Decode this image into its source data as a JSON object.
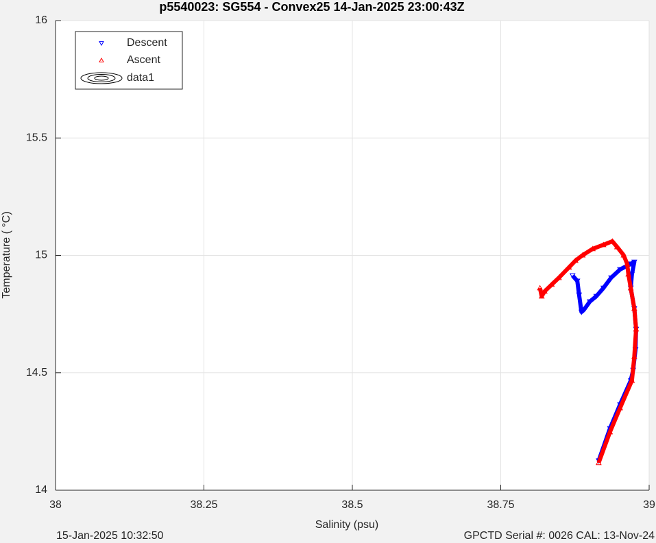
{
  "chart_data": {
    "type": "scatter",
    "title": "p5540023: SG554 - Convex25 14-Jan-2025 23:00:43Z",
    "x_label": "Salinity (psu)",
    "y_label": "Temperature (   °C)",
    "footer_left": "15-Jan-2025 10:32:50",
    "footer_right": "GPCTD Serial #: 0026 CAL: 13-Nov-24",
    "xlim": [
      38,
      39
    ],
    "xticks": [
      38,
      38.25,
      38.5,
      38.75,
      39
    ],
    "ylim": [
      14,
      16
    ],
    "yticks": [
      14,
      14.5,
      15,
      15.5,
      16
    ],
    "grid": true,
    "legend_position": "upper left",
    "legend_extra": "data1",
    "series": [
      {
        "name": "Descent",
        "color": "#0000ff",
        "marker": "triangle-down",
        "x": [
          38.871,
          38.879,
          38.882,
          38.886,
          38.89,
          38.9,
          38.911,
          38.923,
          38.936,
          38.951,
          38.969,
          38.975,
          38.971,
          38.969,
          38.975,
          38.978,
          38.977,
          38.973,
          38.969,
          38.951,
          38.934,
          38.915
        ],
        "values": [
          14.914,
          14.891,
          14.832,
          14.759,
          14.768,
          14.803,
          14.826,
          14.861,
          14.905,
          14.94,
          14.964,
          14.972,
          14.92,
          14.861,
          14.774,
          14.686,
          14.599,
          14.511,
          14.467,
          14.365,
          14.263,
          14.126
        ]
      },
      {
        "name": "Ascent",
        "color": "#ff0000",
        "marker": "triangle-up",
        "x": [
          38.915,
          38.934,
          38.951,
          38.971,
          38.975,
          38.978,
          38.975,
          38.969,
          38.965,
          38.963,
          38.957,
          38.946,
          38.938,
          38.923,
          38.905,
          38.888,
          38.876,
          38.865,
          38.848,
          38.836,
          38.824,
          38.819,
          38.816
        ],
        "values": [
          14.117,
          14.248,
          14.35,
          14.467,
          14.569,
          14.686,
          14.774,
          14.861,
          14.92,
          14.964,
          15.001,
          15.036,
          15.06,
          15.045,
          15.028,
          15.001,
          14.978,
          14.949,
          14.905,
          14.876,
          14.847,
          14.826,
          14.861
        ]
      }
    ]
  }
}
